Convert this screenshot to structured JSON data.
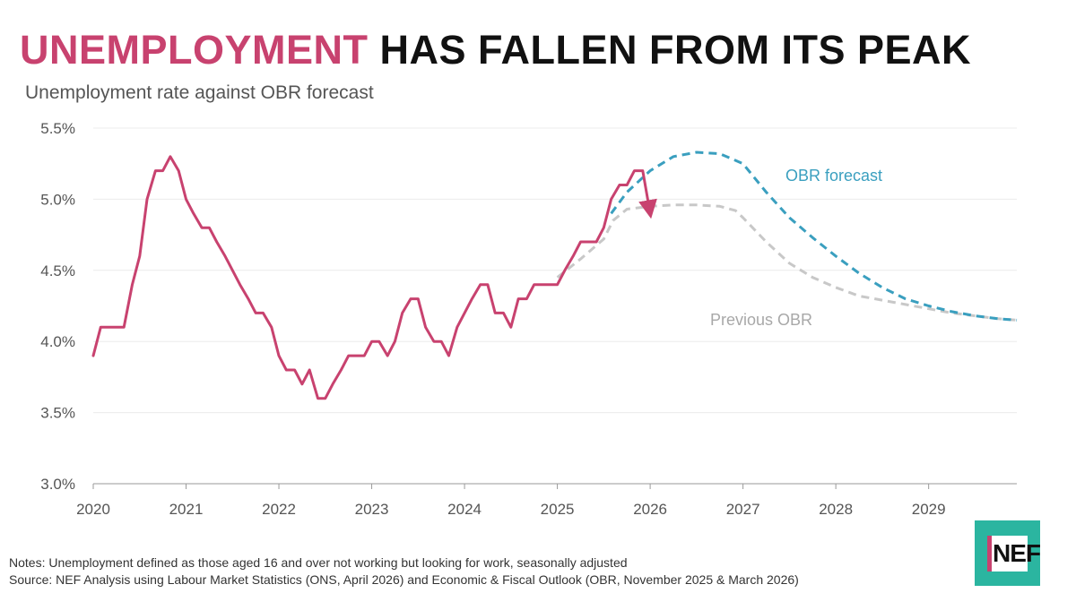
{
  "title": {
    "accent": "UNEMPLOYMENT",
    "rest": "HAS FALLEN FROM ITS PEAK"
  },
  "subtitle": "Unemployment rate against OBR forecast",
  "notes": {
    "line1": "Notes: Unemployment defined as those aged 16 and over not working but looking for work, seasonally adjusted",
    "line2": "Source: NEF Analysis using Labour Market Statistics (ONS, April 2026) and Economic & Fiscal Outlook (OBR, November 2025 & March 2026)"
  },
  "logo": {
    "text": "NEF",
    "bg_color": "#2bb5a0",
    "bar_color": "#c8426f"
  },
  "chart_data": {
    "type": "line",
    "xlim": [
      2020,
      2029.95
    ],
    "ylim": [
      3.0,
      5.5
    ],
    "x_ticks": [
      2020,
      2021,
      2022,
      2023,
      2024,
      2025,
      2026,
      2027,
      2028,
      2029
    ],
    "x_tick_labels": [
      "2020",
      "2021",
      "2022",
      "2023",
      "2024",
      "2025",
      "2026",
      "2027",
      "2028",
      "2029"
    ],
    "y_ticks": [
      3.0,
      3.5,
      4.0,
      4.5,
      5.0,
      5.5
    ],
    "y_tick_labels": [
      "3.0%",
      "3.5%",
      "4.0%",
      "4.5%",
      "5.0%",
      "5.5%"
    ],
    "grid": true,
    "series": [
      {
        "key": "actual",
        "color": "#c8426f",
        "dashed": false,
        "arrow_end": true,
        "points": [
          [
            2020.0,
            3.9
          ],
          [
            2020.08,
            4.1
          ],
          [
            2020.17,
            4.1
          ],
          [
            2020.33,
            4.1
          ],
          [
            2020.42,
            4.4
          ],
          [
            2020.5,
            4.6
          ],
          [
            2020.58,
            5.0
          ],
          [
            2020.67,
            5.2
          ],
          [
            2020.75,
            5.2
          ],
          [
            2020.83,
            5.3
          ],
          [
            2020.92,
            5.2
          ],
          [
            2021.0,
            5.0
          ],
          [
            2021.08,
            4.9
          ],
          [
            2021.17,
            4.8
          ],
          [
            2021.25,
            4.8
          ],
          [
            2021.33,
            4.7
          ],
          [
            2021.42,
            4.6
          ],
          [
            2021.5,
            4.5
          ],
          [
            2021.58,
            4.4
          ],
          [
            2021.67,
            4.3
          ],
          [
            2021.75,
            4.2
          ],
          [
            2021.83,
            4.2
          ],
          [
            2021.92,
            4.1
          ],
          [
            2022.0,
            3.9
          ],
          [
            2022.08,
            3.8
          ],
          [
            2022.17,
            3.8
          ],
          [
            2022.25,
            3.7
          ],
          [
            2022.33,
            3.8
          ],
          [
            2022.42,
            3.6
          ],
          [
            2022.5,
            3.6
          ],
          [
            2022.58,
            3.7
          ],
          [
            2022.67,
            3.8
          ],
          [
            2022.75,
            3.9
          ],
          [
            2022.83,
            3.9
          ],
          [
            2022.92,
            3.9
          ],
          [
            2023.0,
            4.0
          ],
          [
            2023.08,
            4.0
          ],
          [
            2023.17,
            3.9
          ],
          [
            2023.25,
            4.0
          ],
          [
            2023.33,
            4.2
          ],
          [
            2023.42,
            4.3
          ],
          [
            2023.5,
            4.3
          ],
          [
            2023.58,
            4.1
          ],
          [
            2023.67,
            4.0
          ],
          [
            2023.75,
            4.0
          ],
          [
            2023.83,
            3.9
          ],
          [
            2023.92,
            4.1
          ],
          [
            2024.0,
            4.2
          ],
          [
            2024.08,
            4.3
          ],
          [
            2024.17,
            4.4
          ],
          [
            2024.25,
            4.4
          ],
          [
            2024.33,
            4.2
          ],
          [
            2024.42,
            4.2
          ],
          [
            2024.5,
            4.1
          ],
          [
            2024.58,
            4.3
          ],
          [
            2024.67,
            4.3
          ],
          [
            2024.75,
            4.4
          ],
          [
            2024.83,
            4.4
          ],
          [
            2024.92,
            4.4
          ],
          [
            2025.0,
            4.4
          ],
          [
            2025.08,
            4.5
          ],
          [
            2025.17,
            4.6
          ],
          [
            2025.25,
            4.7
          ],
          [
            2025.33,
            4.7
          ],
          [
            2025.42,
            4.7
          ],
          [
            2025.5,
            4.8
          ],
          [
            2025.58,
            5.0
          ],
          [
            2025.67,
            5.1
          ],
          [
            2025.75,
            5.1
          ],
          [
            2025.83,
            5.2
          ],
          [
            2025.92,
            5.2
          ],
          [
            2026.0,
            4.9
          ]
        ]
      },
      {
        "key": "obr_forecast",
        "name": "OBR forecast",
        "color": "#3a9fbf",
        "dashed": true,
        "points": [
          [
            2025.58,
            4.9
          ],
          [
            2025.75,
            5.05
          ],
          [
            2026.0,
            5.2
          ],
          [
            2026.25,
            5.3
          ],
          [
            2026.5,
            5.33
          ],
          [
            2026.75,
            5.32
          ],
          [
            2027.0,
            5.25
          ],
          [
            2027.25,
            5.05
          ],
          [
            2027.5,
            4.87
          ],
          [
            2027.75,
            4.73
          ],
          [
            2028.0,
            4.6
          ],
          [
            2028.25,
            4.48
          ],
          [
            2028.5,
            4.38
          ],
          [
            2028.75,
            4.3
          ],
          [
            2029.0,
            4.25
          ],
          [
            2029.25,
            4.21
          ],
          [
            2029.5,
            4.18
          ],
          [
            2029.75,
            4.16
          ],
          [
            2029.95,
            4.15
          ]
        ]
      },
      {
        "key": "previous_obr",
        "name": "Previous OBR",
        "color": "#c8c8c8",
        "dashed": true,
        "points": [
          [
            2025.0,
            4.45
          ],
          [
            2025.25,
            4.58
          ],
          [
            2025.5,
            4.72
          ],
          [
            2025.6,
            4.85
          ],
          [
            2025.75,
            4.93
          ],
          [
            2026.0,
            4.95
          ],
          [
            2026.25,
            4.96
          ],
          [
            2026.5,
            4.96
          ],
          [
            2026.75,
            4.95
          ],
          [
            2026.92,
            4.92
          ],
          [
            2027.0,
            4.87
          ],
          [
            2027.25,
            4.7
          ],
          [
            2027.5,
            4.55
          ],
          [
            2027.75,
            4.45
          ],
          [
            2028.0,
            4.38
          ],
          [
            2028.25,
            4.32
          ],
          [
            2028.5,
            4.29
          ],
          [
            2028.75,
            4.26
          ],
          [
            2029.0,
            4.23
          ],
          [
            2029.25,
            4.2
          ],
          [
            2029.5,
            4.18
          ],
          [
            2029.75,
            4.16
          ],
          [
            2029.95,
            4.15
          ]
        ]
      }
    ]
  }
}
